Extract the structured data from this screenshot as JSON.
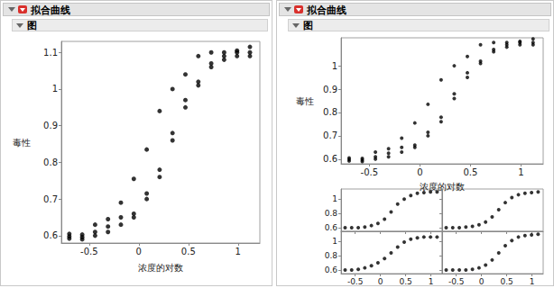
{
  "panels": [
    {
      "header": "拟合曲线",
      "subheader": "图"
    },
    {
      "header": "拟合曲线",
      "subheader": "图"
    }
  ],
  "chart_data": [
    {
      "type": "scatter",
      "x_label": "浓度的对数",
      "y_label": "毒性",
      "color": "#000000",
      "x": [
        -0.7,
        -0.7,
        -0.7,
        -0.57,
        -0.57,
        -0.57,
        -0.44,
        -0.44,
        -0.44,
        -0.31,
        -0.31,
        -0.31,
        -0.18,
        -0.18,
        -0.18,
        -0.05,
        -0.05,
        -0.05,
        0.08,
        0.08,
        0.08,
        0.21,
        0.21,
        0.21,
        0.34,
        0.34,
        0.34,
        0.47,
        0.47,
        0.47,
        0.6,
        0.6,
        0.6,
        0.73,
        0.73,
        0.73,
        0.86,
        0.86,
        0.86,
        0.99,
        0.99,
        0.99,
        1.12,
        1.12,
        1.12
      ],
      "values": [
        0.605,
        0.598,
        0.592,
        0.603,
        0.596,
        0.59,
        0.63,
        0.61,
        0.6,
        0.645,
        0.625,
        0.61,
        0.69,
        0.65,
        0.63,
        0.755,
        0.66,
        0.65,
        0.835,
        0.715,
        0.7,
        0.94,
        0.78,
        0.76,
        1.0,
        0.88,
        0.86,
        1.04,
        0.97,
        0.95,
        1.09,
        1.02,
        1.01,
        1.1,
        1.07,
        1.06,
        1.1,
        1.09,
        1.08,
        1.105,
        1.1,
        1.09,
        1.115,
        1.1,
        1.09
      ],
      "xlim": [
        -0.78,
        1.22
      ],
      "ylim": [
        0.58,
        1.13
      ],
      "xticks": [
        -0.5,
        0,
        0.5,
        1
      ],
      "yticks": [
        0.6,
        0.7,
        0.8,
        0.9,
        1,
        1.1
      ]
    },
    {
      "type": "scatter",
      "x_label": "浓度的对数",
      "y_label": "毒性",
      "color": "#000000",
      "x": [
        -0.7,
        -0.7,
        -0.7,
        -0.57,
        -0.57,
        -0.57,
        -0.44,
        -0.44,
        -0.44,
        -0.31,
        -0.31,
        -0.31,
        -0.18,
        -0.18,
        -0.18,
        -0.05,
        -0.05,
        -0.05,
        0.08,
        0.08,
        0.08,
        0.21,
        0.21,
        0.21,
        0.34,
        0.34,
        0.34,
        0.47,
        0.47,
        0.47,
        0.6,
        0.6,
        0.6,
        0.73,
        0.73,
        0.73,
        0.86,
        0.86,
        0.86,
        0.99,
        0.99,
        0.99,
        1.12,
        1.12,
        1.12
      ],
      "values": [
        0.605,
        0.598,
        0.592,
        0.603,
        0.596,
        0.59,
        0.63,
        0.61,
        0.6,
        0.645,
        0.625,
        0.61,
        0.69,
        0.65,
        0.63,
        0.755,
        0.66,
        0.65,
        0.835,
        0.715,
        0.7,
        0.94,
        0.78,
        0.76,
        1.0,
        0.88,
        0.86,
        1.04,
        0.97,
        0.95,
        1.09,
        1.02,
        1.01,
        1.1,
        1.07,
        1.06,
        1.1,
        1.09,
        1.08,
        1.105,
        1.1,
        1.09,
        1.115,
        1.1,
        1.09
      ],
      "xlim": [
        -0.78,
        1.22
      ],
      "ylim": [
        0.58,
        1.12
      ],
      "xticks": [
        -0.5,
        0,
        0.5,
        1
      ],
      "yticks": [
        0.6,
        0.7,
        0.8,
        0.9,
        1
      ]
    },
    {
      "type": "scatter",
      "color": "#000000",
      "tick_labels": "y",
      "x": [
        -0.7,
        -0.57,
        -0.44,
        -0.31,
        -0.18,
        -0.05,
        0.08,
        0.21,
        0.34,
        0.47,
        0.6,
        0.73,
        0.86,
        0.99,
        1.12
      ],
      "values": [
        0.6,
        0.6,
        0.6,
        0.61,
        0.63,
        0.66,
        0.72,
        0.82,
        0.93,
        1.0,
        1.05,
        1.08,
        1.09,
        1.1,
        1.1
      ],
      "xlim": [
        -0.78,
        1.22
      ],
      "ylim": [
        0.55,
        1.14
      ],
      "xticks": [
        -0.5,
        0,
        0.5,
        1
      ],
      "yticks": [
        0.6,
        0.8,
        1
      ]
    },
    {
      "type": "scatter",
      "color": "#000000",
      "tick_labels": false,
      "x": [
        -0.7,
        -0.57,
        -0.44,
        -0.31,
        -0.18,
        -0.05,
        0.08,
        0.21,
        0.34,
        0.47,
        0.6,
        0.73,
        0.86,
        0.99,
        1.12
      ],
      "values": [
        0.6,
        0.6,
        0.6,
        0.61,
        0.62,
        0.64,
        0.68,
        0.75,
        0.85,
        0.95,
        1.02,
        1.06,
        1.08,
        1.09,
        1.1
      ],
      "xlim": [
        -0.78,
        1.22
      ],
      "ylim": [
        0.55,
        1.14
      ],
      "xticks": [
        -0.5,
        0,
        0.5,
        1
      ],
      "yticks": [
        0.6,
        0.8,
        1
      ]
    },
    {
      "type": "scatter",
      "color": "#000000",
      "x": [
        -0.7,
        -0.57,
        -0.44,
        -0.31,
        -0.18,
        -0.05,
        0.08,
        0.21,
        0.34,
        0.47,
        0.6,
        0.73,
        0.86,
        0.99,
        1.12
      ],
      "values": [
        0.6,
        0.6,
        0.61,
        0.63,
        0.66,
        0.7,
        0.76,
        0.84,
        0.92,
        0.99,
        1.03,
        1.05,
        1.06,
        1.06,
        1.06
      ],
      "xlim": [
        -0.78,
        1.22
      ],
      "ylim": [
        0.55,
        1.14
      ],
      "xticks": [
        -0.5,
        0,
        0.5,
        1
      ],
      "yticks": [
        0.6,
        0.8,
        1
      ]
    },
    {
      "type": "scatter",
      "color": "#000000",
      "tick_labels": "x",
      "x": [
        -0.7,
        -0.57,
        -0.44,
        -0.31,
        -0.18,
        -0.05,
        0.08,
        0.21,
        0.34,
        0.47,
        0.6,
        0.73,
        0.86,
        0.99,
        1.12
      ],
      "values": [
        0.6,
        0.6,
        0.6,
        0.6,
        0.61,
        0.63,
        0.67,
        0.74,
        0.84,
        0.94,
        1.01,
        1.06,
        1.08,
        1.09,
        1.1
      ],
      "xlim": [
        -0.78,
        1.22
      ],
      "ylim": [
        0.55,
        1.14
      ],
      "xticks": [
        -0.5,
        0,
        0.5,
        1
      ],
      "yticks": [
        0.6,
        0.8,
        1
      ]
    }
  ]
}
